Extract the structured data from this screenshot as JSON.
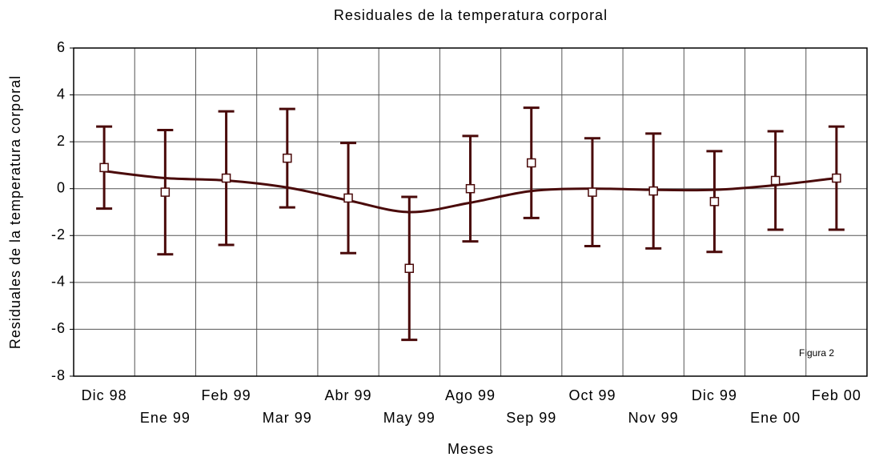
{
  "chart_data": {
    "type": "errorbar",
    "title": "Residuales de la temperatura corporal",
    "x_label": "Meses",
    "y_label": "Residuales de la temperatura corporal",
    "annotation": "Figura 2",
    "categories": [
      "Dic 98",
      "Ene 99",
      "Feb 99",
      "Mar 99",
      "Abr 99",
      "May 99",
      "Ago 99",
      "Sep 99",
      "Oct 99",
      "Nov 99",
      "Dic 99",
      "Ene 00",
      "Feb 00"
    ],
    "series": [
      {
        "color": "#4a0a0a",
        "values": [
          0.9,
          -0.15,
          0.45,
          1.3,
          -0.4,
          -3.4,
          0.0,
          1.1,
          -0.15,
          -0.1,
          -0.55,
          0.35,
          0.45
        ],
        "errors": [
          1.75,
          2.65,
          2.85,
          2.1,
          2.35,
          3.05,
          2.25,
          2.35,
          2.3,
          2.45,
          2.15,
          2.1,
          2.2
        ]
      }
    ],
    "fit_values": [
      0.75,
      0.45,
      0.35,
      0.05,
      -0.5,
      -1.0,
      -0.6,
      -0.1,
      0.0,
      -0.05,
      -0.05,
      0.15,
      0.45
    ],
    "ylim": [
      -8,
      6
    ],
    "yticks": [
      -8,
      -6,
      -4,
      -2,
      0,
      2,
      4,
      6
    ],
    "grid": true
  }
}
